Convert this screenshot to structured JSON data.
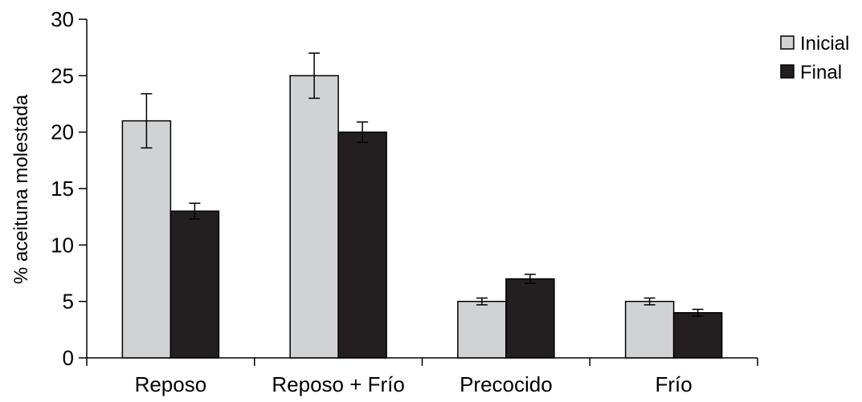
{
  "chart_data": {
    "type": "bar",
    "title": "",
    "xlabel": "",
    "ylabel": "% aceituna molestada",
    "ylim": [
      0,
      30
    ],
    "yticks": [
      0,
      5,
      10,
      15,
      20,
      25,
      30
    ],
    "categories": [
      "Reposo",
      "Reposo + Frío",
      "Precocido",
      "Frío"
    ],
    "series": [
      {
        "name": "Inicial",
        "color": "#d0d2d3",
        "values": [
          21,
          25,
          5,
          5
        ],
        "errors": [
          2.4,
          2.0,
          0.3,
          0.3
        ]
      },
      {
        "name": "Final",
        "color": "#231f20",
        "values": [
          13,
          20,
          7,
          4
        ],
        "errors": [
          0.7,
          0.9,
          0.4,
          0.3
        ]
      }
    ],
    "grid": false,
    "legend": "right",
    "error_bars": true
  }
}
